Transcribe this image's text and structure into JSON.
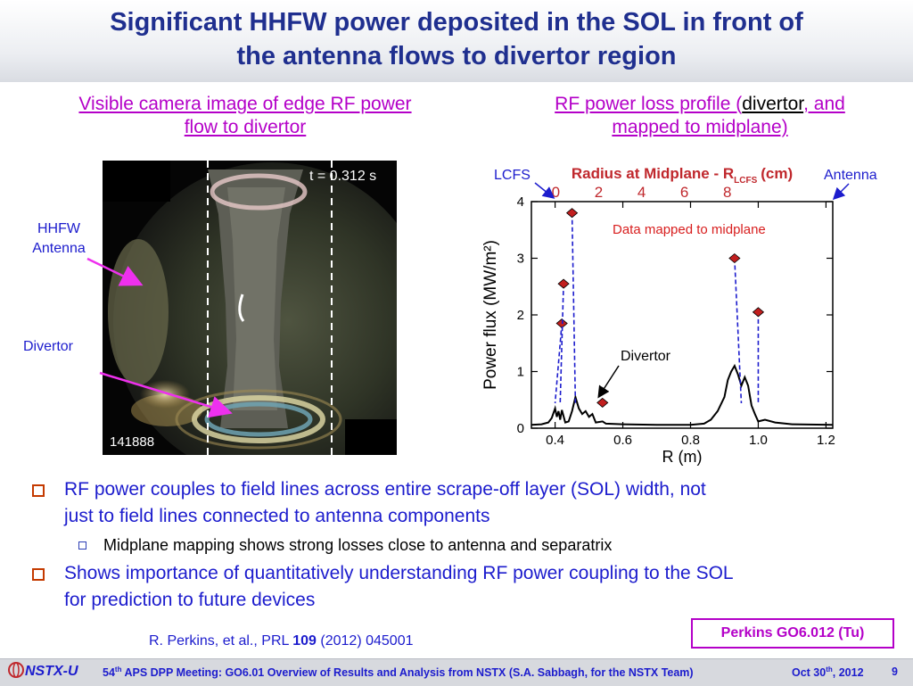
{
  "title": {
    "line1": "Significant HHFW power deposited in the SOL in front of",
    "line2": "the antenna flows to divertor region"
  },
  "left_panel": {
    "heading_line1": "Visible camera image of edge RF power",
    "heading_line2": "flow to divertor",
    "time_label": "t = 0.312 s",
    "shot_number": "141888",
    "label_antenna_line1": "HHFW",
    "label_antenna_line2": "Antenna",
    "label_divertor": "Divertor"
  },
  "right_panel": {
    "heading_part1": "RF power loss profile (",
    "heading_part2": "divertor",
    "heading_part3": ", and",
    "heading_line2": "mapped to midplane)"
  },
  "chart_data": {
    "type": "line",
    "xlabel": "R (m)",
    "ylabel": "Power flux (MW/m²)",
    "xlim": [
      0.33,
      1.22
    ],
    "ylim": [
      0,
      4
    ],
    "x_ticks": [
      "0.4",
      "0.6",
      "0.8",
      "1.0",
      "1.2"
    ],
    "y_ticks": [
      "0",
      "1",
      "2",
      "3",
      "4"
    ],
    "top_axis": {
      "label": "Radius at Midplane - R",
      "label_subscript": "LCFS",
      "label_unit": "(cm)",
      "ticks": [
        "0",
        "2",
        "4",
        "6",
        "8"
      ]
    },
    "annotations": {
      "lcfs": "LCFS",
      "antenna": "Antenna",
      "midplane": "Data mapped to midplane",
      "divertor": "Divertor"
    },
    "series": [
      {
        "values": [
          [
            0.33,
            0.06
          ],
          [
            0.36,
            0.07
          ],
          [
            0.38,
            0.1
          ],
          [
            0.39,
            0.18
          ],
          [
            0.4,
            0.35
          ],
          [
            0.405,
            0.2
          ],
          [
            0.41,
            0.3
          ],
          [
            0.415,
            0.15
          ],
          [
            0.42,
            0.32
          ],
          [
            0.43,
            0.1
          ],
          [
            0.44,
            0.12
          ],
          [
            0.45,
            0.3
          ],
          [
            0.46,
            0.55
          ],
          [
            0.47,
            0.35
          ],
          [
            0.48,
            0.25
          ],
          [
            0.49,
            0.3
          ],
          [
            0.5,
            0.2
          ],
          [
            0.51,
            0.25
          ],
          [
            0.52,
            0.1
          ],
          [
            0.54,
            0.12
          ],
          [
            0.55,
            0.08
          ],
          [
            0.6,
            0.07
          ],
          [
            0.7,
            0.06
          ],
          [
            0.8,
            0.06
          ],
          [
            0.84,
            0.08
          ],
          [
            0.86,
            0.15
          ],
          [
            0.88,
            0.3
          ],
          [
            0.9,
            0.55
          ],
          [
            0.91,
            0.85
          ],
          [
            0.92,
            1.0
          ],
          [
            0.93,
            1.1
          ],
          [
            0.94,
            0.95
          ],
          [
            0.95,
            0.75
          ],
          [
            0.96,
            0.9
          ],
          [
            0.97,
            0.75
          ],
          [
            0.98,
            0.4
          ],
          [
            0.99,
            0.25
          ],
          [
            1.0,
            0.12
          ],
          [
            1.02,
            0.15
          ],
          [
            1.05,
            0.1
          ],
          [
            1.1,
            0.07
          ],
          [
            1.22,
            0.06
          ]
        ]
      }
    ],
    "midplane_points": [
      {
        "x": 0.42,
        "y": 1.85,
        "base_x": 0.4
      },
      {
        "x": 0.425,
        "y": 2.55,
        "base_x": 0.415
      },
      {
        "x": 0.45,
        "y": 3.8,
        "base_x": 0.46
      },
      {
        "x": 0.54,
        "y": 0.45,
        "base_x": 0.54
      },
      {
        "x": 0.93,
        "y": 3.0,
        "base_x": 0.95
      },
      {
        "x": 1.0,
        "y": 2.05,
        "base_x": 1.0
      }
    ],
    "colors": {
      "curve": "#000000",
      "marker": "#c21f1f",
      "dashed": "#1c1ccd",
      "top_axis": "#c0282d"
    }
  },
  "bullets": [
    {
      "line1": "RF power couples to field lines across entire scrape-off layer (SOL) width, not",
      "line2": "just to field lines connected to antenna components"
    },
    {
      "line1": "Shows importance of quantitatively understanding RF power coupling to the SOL",
      "line2": "for prediction to future devices"
    }
  ],
  "sub_bullet": "Midplane mapping shows strong losses close to antenna and separatrix",
  "reference": {
    "pre": "R. Perkins, et al., PRL ",
    "bold": "109",
    "post": " (2012) 045001"
  },
  "boxed_reference": "Perkins GO6.012 (Tu)",
  "footer": {
    "logo": "NSTX-U",
    "ordinal": "54",
    "ordinal_sup": "th",
    "text": " APS DPP Meeting: GO6.01 Overview of Results and Analysis from NSTX (S.A. Sabbagh, for the NSTX Team)",
    "date_pre": "Oct 30",
    "date_sup": "th",
    "date_post": ", 2012",
    "page": "9"
  }
}
